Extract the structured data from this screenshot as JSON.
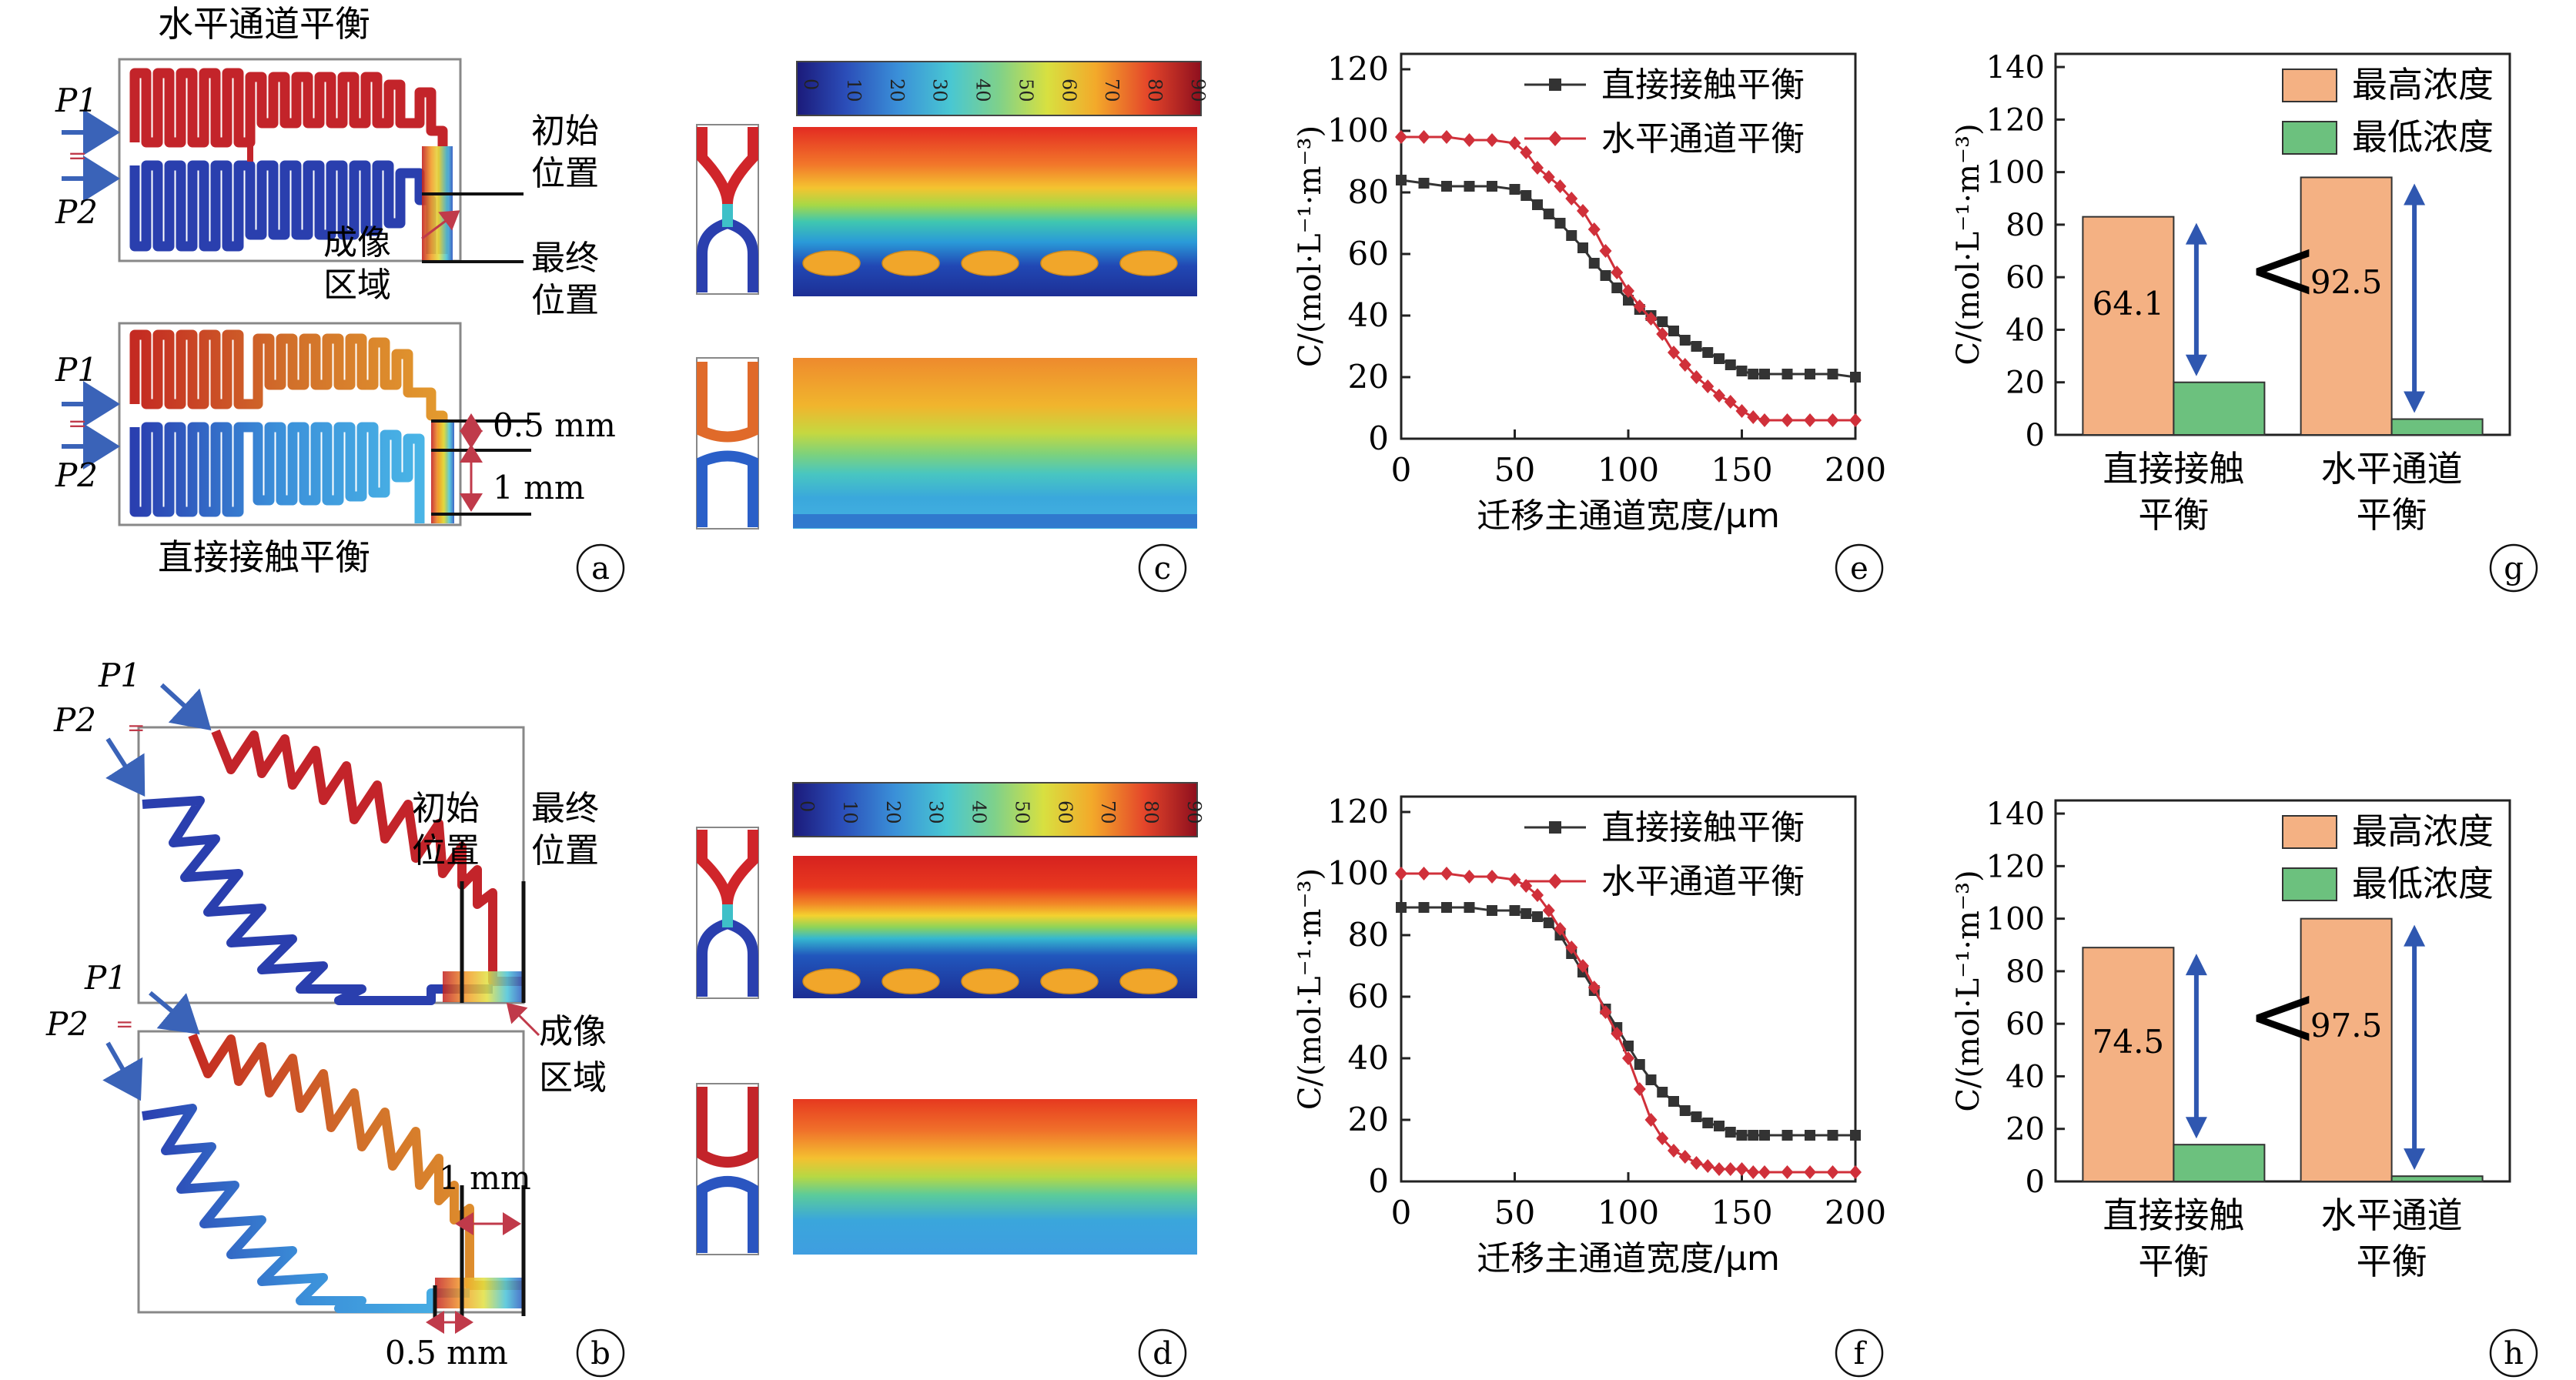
{
  "panels": {
    "a": {
      "letter": "a",
      "title_top": "水平通道平衡",
      "title_bottom": "直接接触平衡",
      "label_p1": "P1",
      "label_p2": "P2",
      "lbl_initial": [
        "初始",
        "位置"
      ],
      "lbl_final": [
        "最终",
        "位置"
      ],
      "lbl_imaging": [
        "成像",
        "区域"
      ],
      "dim_half": "0.5 mm",
      "dim_one": "1 mm"
    },
    "b": {
      "letter": "b",
      "label_p1": "P1",
      "label_p2": "P2",
      "lbl_initial": [
        "初始",
        "位置"
      ],
      "lbl_final": [
        "最终",
        "位置"
      ],
      "lbl_imaging": [
        "成像",
        "区域"
      ],
      "dim_one": "1 mm",
      "dim_half": "0.5 mm"
    },
    "c": {
      "letter": "c",
      "colorbar_ticks": [
        "0",
        "10",
        "20",
        "30",
        "40",
        "50",
        "60",
        "70",
        "80",
        "90"
      ]
    },
    "d": {
      "letter": "d",
      "colorbar_ticks": [
        "0",
        "10",
        "20",
        "30",
        "40",
        "50",
        "60",
        "70",
        "80",
        "90"
      ]
    },
    "e": {
      "letter": "e"
    },
    "f": {
      "letter": "f"
    },
    "g": {
      "letter": "g"
    },
    "h": {
      "letter": "h"
    }
  },
  "chart_data": [
    {
      "panel": "e",
      "type": "line",
      "xlabel": "迁移主通道宽度/μm",
      "ylabel": "C/(mol·L⁻¹·m⁻³)",
      "xlim": [
        0,
        200
      ],
      "ylim": [
        0,
        125
      ],
      "xticks": [
        0,
        50,
        100,
        150,
        200
      ],
      "yticks": [
        0,
        20,
        40,
        60,
        80,
        100,
        120
      ],
      "legend_position": "top-right",
      "series": [
        {
          "name": "直接接触平衡",
          "color": "#333333",
          "marker": "square",
          "x": [
            0,
            10,
            20,
            30,
            40,
            50,
            55,
            60,
            65,
            70,
            75,
            80,
            85,
            90,
            95,
            100,
            105,
            110,
            115,
            120,
            125,
            130,
            135,
            140,
            145,
            150,
            155,
            160,
            170,
            180,
            190,
            200
          ],
          "y": [
            84,
            83,
            82,
            82,
            82,
            81,
            79,
            76,
            73,
            70,
            66,
            62,
            57,
            53,
            49,
            45,
            42,
            40,
            38,
            35,
            32,
            30,
            28,
            26,
            24,
            22,
            21,
            21,
            21,
            21,
            21,
            20
          ]
        },
        {
          "name": "水平通道平衡",
          "color": "#d0303a",
          "marker": "diamond",
          "x": [
            0,
            10,
            20,
            30,
            40,
            50,
            55,
            60,
            65,
            70,
            75,
            80,
            85,
            90,
            95,
            100,
            105,
            110,
            115,
            120,
            125,
            130,
            135,
            140,
            145,
            150,
            155,
            160,
            170,
            180,
            190,
            200
          ],
          "y": [
            98,
            98,
            98,
            97,
            97,
            96,
            93,
            88,
            85,
            82,
            78,
            74,
            68,
            61,
            54,
            48,
            43,
            39,
            34,
            28,
            24,
            20,
            17,
            14,
            12,
            9,
            7,
            6,
            6,
            6,
            6,
            6
          ]
        }
      ]
    },
    {
      "panel": "f",
      "type": "line",
      "xlabel": "迁移主通道宽度/μm",
      "ylabel": "C/(mol·L⁻¹·m⁻³)",
      "xlim": [
        0,
        200
      ],
      "ylim": [
        0,
        125
      ],
      "xticks": [
        0,
        50,
        100,
        150,
        200
      ],
      "yticks": [
        0,
        20,
        40,
        60,
        80,
        100,
        120
      ],
      "legend_position": "top-right",
      "series": [
        {
          "name": "直接接触平衡",
          "color": "#333333",
          "marker": "square",
          "x": [
            0,
            10,
            20,
            30,
            40,
            50,
            55,
            60,
            65,
            70,
            75,
            80,
            85,
            90,
            95,
            100,
            105,
            110,
            115,
            120,
            125,
            130,
            135,
            140,
            145,
            150,
            155,
            160,
            170,
            180,
            190,
            200
          ],
          "y": [
            89,
            89,
            89,
            89,
            88,
            88,
            87,
            86,
            84,
            80,
            74,
            68,
            62,
            56,
            50,
            44,
            38,
            33,
            29,
            26,
            23,
            21,
            19,
            18,
            16,
            15,
            15,
            15,
            15,
            15,
            15,
            15
          ]
        },
        {
          "name": "水平通道平衡",
          "color": "#d0303a",
          "marker": "diamond",
          "x": [
            0,
            10,
            20,
            30,
            40,
            50,
            55,
            60,
            65,
            70,
            75,
            80,
            85,
            90,
            95,
            100,
            105,
            110,
            115,
            120,
            125,
            130,
            135,
            140,
            145,
            150,
            155,
            160,
            170,
            180,
            190,
            200
          ],
          "y": [
            100,
            100,
            100,
            99,
            99,
            98,
            96,
            93,
            88,
            82,
            76,
            70,
            63,
            55,
            48,
            40,
            30,
            20,
            14,
            10,
            8,
            6,
            5,
            4,
            4,
            4,
            3,
            3,
            3,
            3,
            3,
            3
          ]
        }
      ]
    },
    {
      "panel": "g",
      "type": "bar",
      "ylabel": "C/(mol·L⁻¹·m⁻³)",
      "ylim": [
        0,
        145
      ],
      "yticks": [
        0,
        20,
        40,
        60,
        80,
        100,
        120,
        140
      ],
      "categories": [
        [
          "直接接触",
          "平衡"
        ],
        [
          "水平通道",
          "平衡"
        ]
      ],
      "legend_position": "top-right",
      "series": [
        {
          "name": "最高浓度",
          "color": "#f4b183",
          "values": [
            83,
            98
          ]
        },
        {
          "name": "最低浓度",
          "color": "#6cc17e",
          "values": [
            20,
            6
          ]
        }
      ],
      "annotations": [
        "64.1",
        "92.5"
      ],
      "comparison": "<"
    },
    {
      "panel": "h",
      "type": "bar",
      "ylabel": "C/(mol·L⁻¹·m⁻³)",
      "ylim": [
        0,
        145
      ],
      "yticks": [
        0,
        20,
        40,
        60,
        80,
        100,
        120,
        140
      ],
      "categories": [
        [
          "直接接触",
          "平衡"
        ],
        [
          "水平通道",
          "平衡"
        ]
      ],
      "legend_position": "top-right",
      "series": [
        {
          "name": "最高浓度",
          "color": "#f4b183",
          "values": [
            89,
            100
          ]
        },
        {
          "name": "最低浓度",
          "color": "#6cc17e",
          "values": [
            14,
            2
          ]
        }
      ],
      "annotations": [
        "74.5",
        "97.5"
      ],
      "comparison": "<"
    }
  ]
}
